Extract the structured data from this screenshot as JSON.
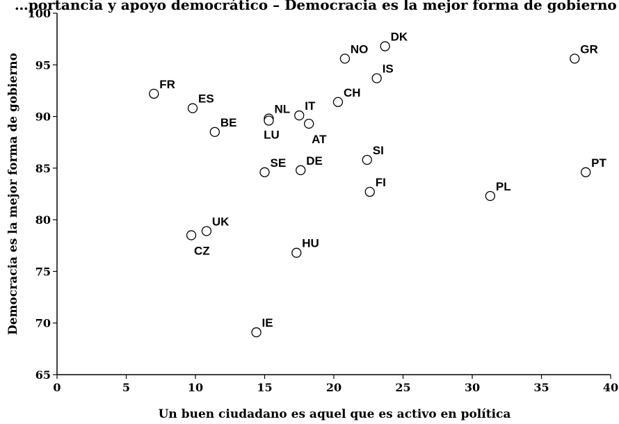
{
  "chart_data": {
    "type": "scatter",
    "title": "…portancia y apoyo democrático – Democracia es la mejor forma de gobierno vs. participación…",
    "xlabel": "Un buen ciudadano es aquel que es activo en política",
    "ylabel": "Democracia es la mejor forma de gobierno",
    "xlim": [
      0,
      40
    ],
    "ylim": [
      65,
      100
    ],
    "xticks": [
      0,
      5,
      10,
      15,
      20,
      25,
      30,
      35,
      40
    ],
    "yticks": [
      65,
      70,
      75,
      80,
      85,
      90,
      95,
      100
    ],
    "grid": false,
    "legend": "none",
    "points": [
      {
        "label": "FR",
        "x": 7.0,
        "y": 92.2,
        "pos": "ne"
      },
      {
        "label": "ES",
        "x": 9.8,
        "y": 90.8,
        "pos": "ne"
      },
      {
        "label": "BE",
        "x": 11.4,
        "y": 88.5,
        "pos": "ne"
      },
      {
        "label": "NL",
        "x": 15.3,
        "y": 89.8,
        "pos": "ne"
      },
      {
        "label": "LU",
        "x": 15.3,
        "y": 89.6,
        "pos": "s"
      },
      {
        "label": "IT",
        "x": 17.5,
        "y": 90.1,
        "pos": "ne"
      },
      {
        "label": "AT",
        "x": 18.2,
        "y": 89.3,
        "pos": "se"
      },
      {
        "label": "CH",
        "x": 20.3,
        "y": 91.4,
        "pos": "ne"
      },
      {
        "label": "NO",
        "x": 20.8,
        "y": 95.6,
        "pos": "ne"
      },
      {
        "label": "DK",
        "x": 23.7,
        "y": 96.8,
        "pos": "ne"
      },
      {
        "label": "IS",
        "x": 23.1,
        "y": 93.7,
        "pos": "ne"
      },
      {
        "label": "GR",
        "x": 37.4,
        "y": 95.6,
        "pos": "ne"
      },
      {
        "label": "SE",
        "x": 15.0,
        "y": 84.6,
        "pos": "ne"
      },
      {
        "label": "DE",
        "x": 17.6,
        "y": 84.8,
        "pos": "ne"
      },
      {
        "label": "SI",
        "x": 22.4,
        "y": 85.8,
        "pos": "ne"
      },
      {
        "label": "FI",
        "x": 22.6,
        "y": 82.7,
        "pos": "ne"
      },
      {
        "label": "PT",
        "x": 38.2,
        "y": 84.6,
        "pos": "ne"
      },
      {
        "label": "PL",
        "x": 31.3,
        "y": 82.3,
        "pos": "ne"
      },
      {
        "label": "UK",
        "x": 10.8,
        "y": 78.9,
        "pos": "ne"
      },
      {
        "label": "CZ",
        "x": 9.7,
        "y": 78.5,
        "pos": "se"
      },
      {
        "label": "HU",
        "x": 17.3,
        "y": 76.8,
        "pos": "ne"
      },
      {
        "label": "IE",
        "x": 14.4,
        "y": 69.1,
        "pos": "ne"
      }
    ]
  }
}
